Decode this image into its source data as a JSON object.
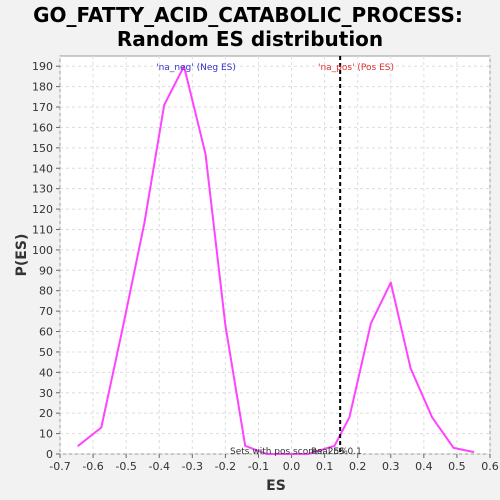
{
  "chart_data": {
    "type": "line",
    "title_line1": "GO_FATTY_ACID_CATABOLIC_PROCESS:",
    "title_line2": "Random ES distribution",
    "xlabel": "ES",
    "ylabel": "P(ES)",
    "xlim": [
      -0.7,
      0.6
    ],
    "ylim": [
      0,
      195
    ],
    "x_ticks": [
      "-0.7",
      "-0.6",
      "-0.5",
      "-0.4",
      "-0.3",
      "-0.2",
      "-0.1",
      "0.0",
      "0.1",
      "0.2",
      "0.3",
      "0.4",
      "0.5",
      "0.6"
    ],
    "y_ticks": [
      "0",
      "10",
      "20",
      "30",
      "40",
      "50",
      "60",
      "70",
      "80",
      "90",
      "100",
      "110",
      "120",
      "130",
      "140",
      "150",
      "160",
      "170",
      "180",
      "190"
    ],
    "grid": true,
    "series": [
      {
        "color": "#ff44ff",
        "x": [
          -0.645,
          -0.575,
          -0.51,
          -0.445,
          -0.385,
          -0.325,
          -0.26,
          -0.2,
          -0.14,
          -0.075,
          -0.01,
          0.05,
          0.13,
          0.175,
          0.24,
          0.3,
          0.36,
          0.425,
          0.49,
          0.55
        ],
        "y": [
          4,
          13,
          62,
          113,
          171,
          190,
          147,
          63,
          4,
          0,
          0,
          0,
          4,
          18,
          64,
          84,
          42,
          18,
          3,
          1
        ]
      }
    ],
    "real_es_line": {
      "x": 0.147,
      "color": "#000000",
      "style": "dashed"
    },
    "annotations": {
      "neg_label": "'na_neg' (Neg ES)",
      "pos_label": "'na_pos' (Pos ES)",
      "sets_pos_label": "Sets with pos scores: 25%",
      "real_es_label": "Real ES 0.1"
    }
  }
}
